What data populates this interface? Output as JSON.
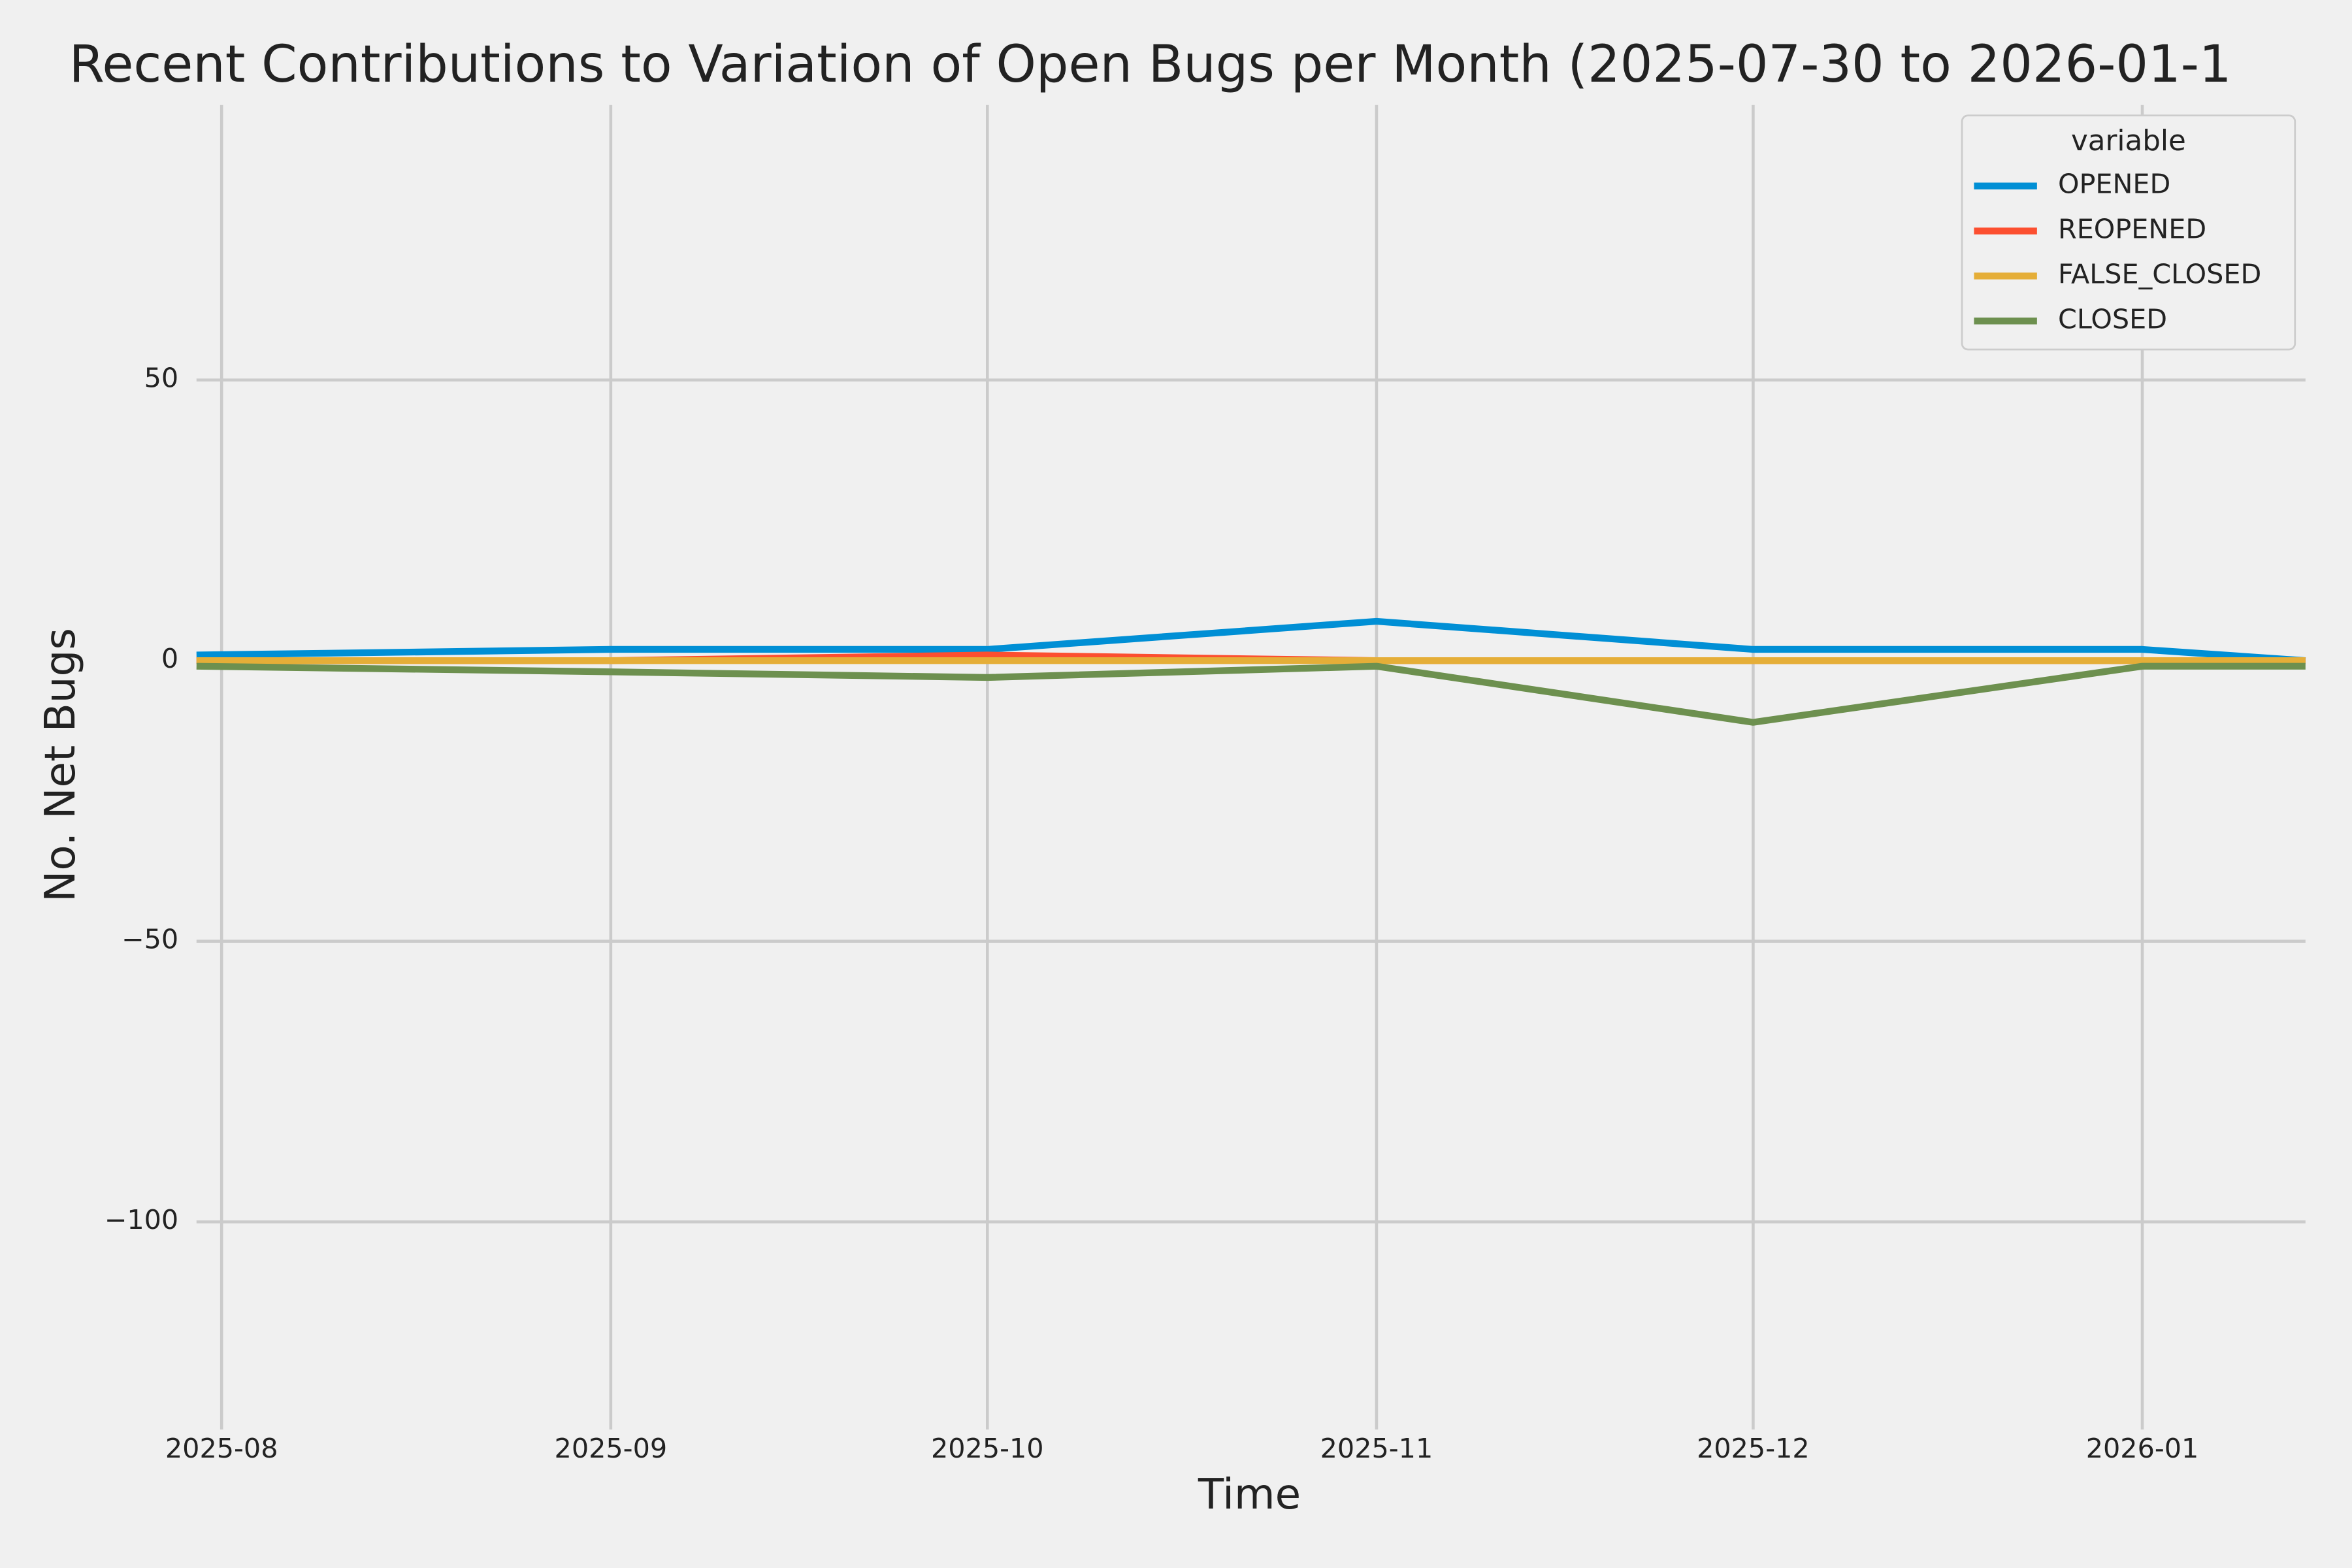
{
  "chart_data": {
    "type": "line",
    "title": "Recent Contributions to Variation of Open Bugs per Month (2025-07-30 to 2026-01-1",
    "x_label": "Time",
    "y_label": "No. Net Bugs",
    "x": [
      "2025-07-30",
      "2025-09-01",
      "2025-10-01",
      "2025-11-01",
      "2025-12-01",
      "2026-01-01",
      "2026-01-14"
    ],
    "series": [
      {
        "name": "OPENED",
        "color": "#008fd5",
        "values": [
          1,
          2,
          2,
          7,
          2,
          2,
          0
        ]
      },
      {
        "name": "REOPENED",
        "color": "#fc4f30",
        "values": [
          0,
          0,
          1,
          0,
          0,
          0,
          0
        ]
      },
      {
        "name": "FALSE_CLOSED",
        "color": "#e5ae38",
        "values": [
          0,
          0,
          0,
          0,
          0,
          0,
          0
        ]
      },
      {
        "name": "CLOSED",
        "color": "#6d904f",
        "values": [
          -1,
          -2,
          -3,
          -1,
          -11,
          -1,
          -1
        ]
      }
    ],
    "legend_title": "variable",
    "legend": "upper right",
    "grid": true,
    "xlim": [
      "2025-07-30",
      "2026-01-14"
    ],
    "xticks": [
      {
        "value": "2025-08-01",
        "label": "2025-08"
      },
      {
        "value": "2025-09-01",
        "label": "2025-09"
      },
      {
        "value": "2025-10-01",
        "label": "2025-10"
      },
      {
        "value": "2025-11-01",
        "label": "2025-11"
      },
      {
        "value": "2025-12-01",
        "label": "2025-12"
      },
      {
        "value": "2026-01-01",
        "label": "2026-01"
      }
    ],
    "ylim": [
      -137,
      99
    ],
    "yticks": [
      {
        "value": -100,
        "label": "−100"
      },
      {
        "value": -50,
        "label": "−50"
      },
      0,
      50
    ]
  }
}
